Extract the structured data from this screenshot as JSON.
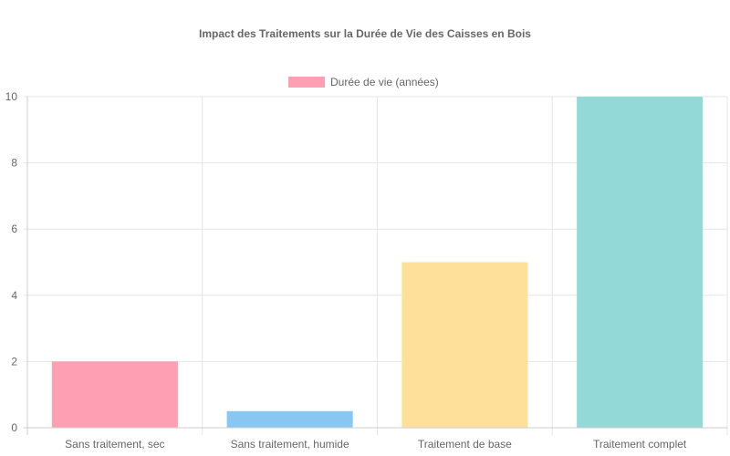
{
  "chart_data": {
    "type": "bar",
    "title": "Impact des Traitements sur la Durée de Vie des Caisses en Bois",
    "categories": [
      "Sans traitement, sec",
      "Sans traitement, humide",
      "Traitement de base",
      "Traitement complet"
    ],
    "series": [
      {
        "name": "Durée de vie (années)",
        "values": [
          2,
          0.5,
          5,
          10
        ]
      }
    ],
    "bar_colors": [
      "#ff9fb3",
      "#88c7f4",
      "#ffe09a",
      "#93d9d7"
    ],
    "legend_color": "#ff9fb3",
    "ylim": [
      0,
      10
    ],
    "yticks": [
      0,
      2,
      4,
      6,
      8,
      10
    ],
    "grid": true,
    "legend_position": "top-center",
    "xlabel": "",
    "ylabel": ""
  }
}
